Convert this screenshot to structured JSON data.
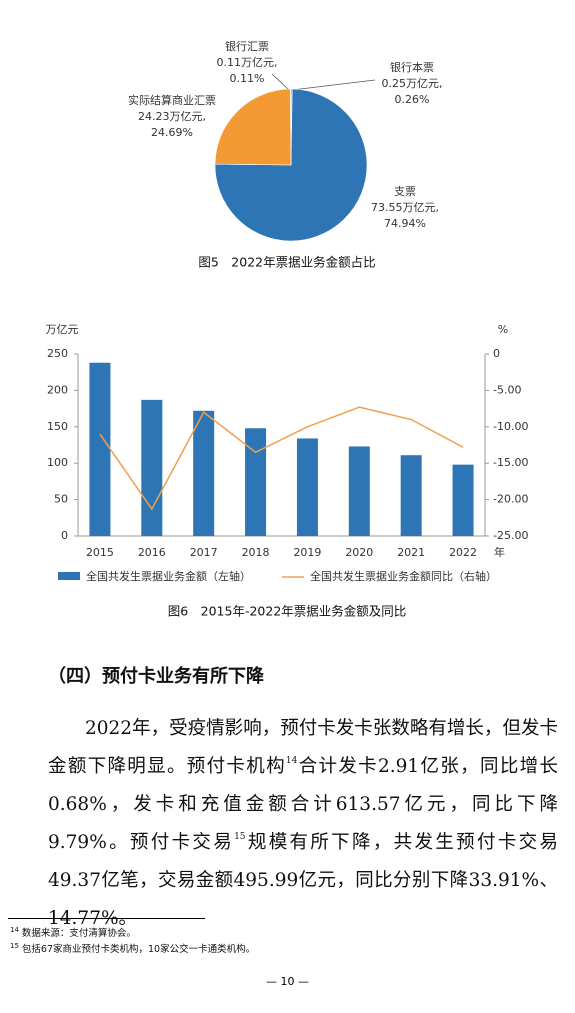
{
  "pie": {
    "type": "pie",
    "title": "图5　2022年票据业务金额占比",
    "categories": [
      "银行本票",
      "支票",
      "实际结算商业汇票",
      "银行汇票"
    ],
    "amount_labels": [
      "0.25万亿元,",
      "73.55万亿元,",
      "24.23万亿元,",
      "0.11万亿元,"
    ],
    "values": [
      0.26,
      74.94,
      24.69,
      0.11
    ],
    "value_labels": [
      "0.26%",
      "74.94%",
      "24.69%",
      "0.11%"
    ],
    "colors": [
      "#2e75b6",
      "#2e75b6",
      "#f39a35",
      "#2e75b6"
    ]
  },
  "combo": {
    "type": "bar-line",
    "title": "图6　2015年-2022年票据业务金额及同比",
    "categories": [
      "2015",
      "2016",
      "2017",
      "2018",
      "2019",
      "2020",
      "2021",
      "2022"
    ],
    "x_unit": "年",
    "y_label": "万亿元",
    "y2_label": "%",
    "ylim": [
      0,
      250
    ],
    "yticks": [
      0,
      50,
      100,
      150,
      200,
      250
    ],
    "y2lim": [
      -25,
      0
    ],
    "y2ticks": [
      0,
      {
        "value": -5,
        "label": "-5.00"
      },
      {
        "value": -10,
        "label": "-10.00"
      },
      {
        "value": -15,
        "label": "-15.00"
      },
      {
        "value": -20,
        "label": "-20.00"
      },
      {
        "value": -25,
        "label": "-25.00"
      }
    ],
    "series": [
      {
        "name": "全国共发生票据业务金额（左轴）",
        "type": "bar",
        "color": "#2e75b6",
        "values": [
          238,
          187,
          172,
          148,
          134,
          123,
          111,
          98
        ]
      },
      {
        "name": "全国共发生票据业务金额同比（右轴）",
        "type": "line",
        "axis": "y2",
        "color": "#f0a050",
        "values": [
          -11,
          -21.3,
          -8,
          -13.5,
          -10,
          -7.3,
          -9,
          -12.8
        ]
      }
    ]
  },
  "section": {
    "heading": "（四）预付卡业务有所下降",
    "paragraph": [
      "2022年，受疫情影响，预付卡发卡张数略有增长，但发卡金额下降明显。预付卡机构",
      "14",
      "合计发卡2.91亿张，同比增长0.68%，发卡和充值金额合计613.57亿元，同比下降9.79%。预付卡交易",
      "15",
      "规模有所下降，共发生预付卡交易49.37亿笔，交易金额495.99亿元，同比分别下降33.91%、14.77%。"
    ]
  },
  "footnotes": [
    {
      "marker": "14",
      "text": "数据来源：支付清算协会。"
    },
    {
      "marker": "15",
      "text": "包括67家商业预付卡类机构，10家公交一卡通类机构。"
    }
  ],
  "page_number": "— 10 —"
}
